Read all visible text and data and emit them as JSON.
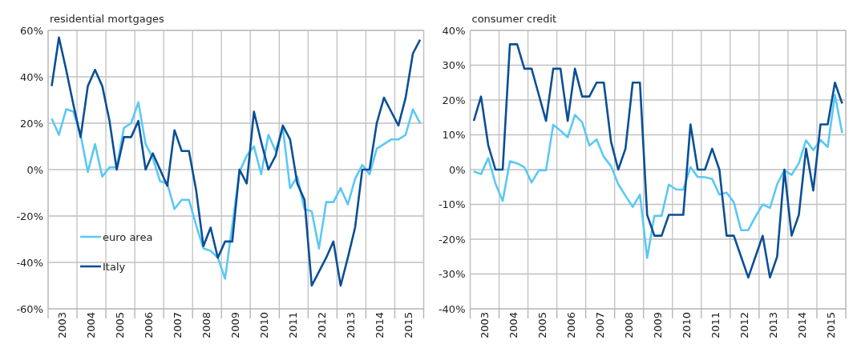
{
  "chart_data": [
    {
      "type": "line",
      "title": "residential mortgages",
      "legend": "bottom left",
      "grid": true,
      "x": [
        2003.125,
        2003.375,
        2003.625,
        2003.875,
        2004.125,
        2004.375,
        2004.625,
        2004.875,
        2005.125,
        2005.375,
        2005.625,
        2005.875,
        2006.125,
        2006.375,
        2006.625,
        2006.875,
        2007.125,
        2007.375,
        2007.625,
        2007.875,
        2008.125,
        2008.375,
        2008.625,
        2008.875,
        2009.125,
        2009.375,
        2009.625,
        2009.875,
        2010.125,
        2010.375,
        2010.625,
        2010.875,
        2011.125,
        2011.375,
        2011.625,
        2011.875,
        2012.125,
        2012.375,
        2012.625,
        2012.875,
        2013.125,
        2013.375,
        2013.625,
        2013.875,
        2014.125,
        2014.375,
        2014.625,
        2014.875,
        2015.125,
        2015.375,
        2015.625,
        2015.875
      ],
      "xlim": [
        2003,
        2016
      ],
      "xticks": [
        {
          "value": 2003,
          "label": null
        },
        {
          "value": 2004,
          "label": null
        },
        {
          "value": 2005,
          "label": null
        },
        {
          "value": 2006,
          "label": null
        },
        {
          "value": 2007,
          "label": null
        },
        {
          "value": 2008,
          "label": null
        },
        {
          "value": 2009,
          "label": null
        },
        {
          "value": 2010,
          "label": null
        },
        {
          "value": 2011,
          "label": null
        },
        {
          "value": 2012,
          "label": null
        },
        {
          "value": 2013,
          "label": null
        },
        {
          "value": 2014,
          "label": null
        },
        {
          "value": 2015,
          "label": null
        },
        {
          "value": 2016,
          "label": null
        },
        {
          "value": 2003.5,
          "label": "2003"
        },
        {
          "value": 2004.5,
          "label": "2004"
        },
        {
          "value": 2005.5,
          "label": "2005"
        },
        {
          "value": 2006.5,
          "label": "2006"
        },
        {
          "value": 2007.5,
          "label": "2007"
        },
        {
          "value": 2008.5,
          "label": "2008"
        },
        {
          "value": 2009.5,
          "label": "2009"
        },
        {
          "value": 2010.5,
          "label": "2010"
        },
        {
          "value": 2011.5,
          "label": "2011"
        },
        {
          "value": 2012.5,
          "label": "2012"
        },
        {
          "value": 2013.5,
          "label": "2013"
        },
        {
          "value": 2014.5,
          "label": "2014"
        },
        {
          "value": 2015.5,
          "label": "2015"
        }
      ],
      "ylim": [
        -60,
        60
      ],
      "yticks": [
        {
          "value": -60,
          "label": "-60%"
        },
        {
          "value": -40,
          "label": "-40%"
        },
        {
          "value": -20,
          "label": "-20%"
        },
        {
          "value": 0,
          "label": "0%"
        },
        {
          "value": 20,
          "label": "20%"
        },
        {
          "value": 40,
          "label": "40%"
        },
        {
          "value": 60,
          "label": "60%"
        }
      ],
      "series": [
        {
          "name": "euro area",
          "color": "#5bc8f5",
          "values": [
            22,
            15,
            26,
            25,
            15,
            -1,
            11,
            -3,
            1,
            1,
            18,
            20,
            29,
            11,
            5,
            -5,
            -6,
            -17,
            -13,
            -13,
            -24,
            -34,
            -35,
            -38,
            -47,
            -24,
            -1,
            6,
            10,
            -2,
            15,
            8,
            18,
            -8,
            -3,
            -17,
            -18,
            -34,
            -14,
            -14,
            -8,
            -15,
            -4,
            2,
            -2,
            9,
            11,
            13,
            13,
            15,
            26,
            20
          ]
        },
        {
          "name": "Italy",
          "color": "#0a4f96",
          "values": [
            36,
            57,
            43,
            28,
            14,
            36,
            43,
            36,
            21,
            0,
            14,
            14,
            21,
            0,
            7,
            0,
            -7,
            17,
            8,
            8,
            -9,
            -33,
            -25,
            -38,
            -31,
            -31,
            0,
            -6,
            25,
            12,
            0,
            6,
            19,
            13,
            -6,
            -13,
            -50,
            -44,
            -38,
            -31,
            -50,
            -38,
            -25,
            0,
            0,
            20,
            31,
            25,
            19,
            31,
            50,
            56
          ]
        }
      ]
    },
    {
      "type": "line",
      "title": "consumer credit",
      "grid": true,
      "x": [
        2003.125,
        2003.375,
        2003.625,
        2003.875,
        2004.125,
        2004.375,
        2004.625,
        2004.875,
        2005.125,
        2005.375,
        2005.625,
        2005.875,
        2006.125,
        2006.375,
        2006.625,
        2006.875,
        2007.125,
        2007.375,
        2007.625,
        2007.875,
        2008.125,
        2008.375,
        2008.625,
        2008.875,
        2009.125,
        2009.375,
        2009.625,
        2009.875,
        2010.125,
        2010.375,
        2010.625,
        2010.875,
        2011.125,
        2011.375,
        2011.625,
        2011.875,
        2012.125,
        2012.375,
        2012.625,
        2012.875,
        2013.125,
        2013.375,
        2013.625,
        2013.875,
        2014.125,
        2014.375,
        2014.625,
        2014.875,
        2015.125,
        2015.375,
        2015.625,
        2015.875
      ],
      "xlim": [
        2003,
        2016
      ],
      "xticks": [
        {
          "value": 2003,
          "label": null
        },
        {
          "value": 2004,
          "label": null
        },
        {
          "value": 2005,
          "label": null
        },
        {
          "value": 2006,
          "label": null
        },
        {
          "value": 2007,
          "label": null
        },
        {
          "value": 2008,
          "label": null
        },
        {
          "value": 2009,
          "label": null
        },
        {
          "value": 2010,
          "label": null
        },
        {
          "value": 2011,
          "label": null
        },
        {
          "value": 2012,
          "label": null
        },
        {
          "value": 2013,
          "label": null
        },
        {
          "value": 2014,
          "label": null
        },
        {
          "value": 2015,
          "label": null
        },
        {
          "value": 2016,
          "label": null
        },
        {
          "value": 2003.5,
          "label": "2003"
        },
        {
          "value": 2004.5,
          "label": "2004"
        },
        {
          "value": 2005.5,
          "label": "2005"
        },
        {
          "value": 2006.5,
          "label": "2006"
        },
        {
          "value": 2007.5,
          "label": "2007"
        },
        {
          "value": 2008.5,
          "label": "2008"
        },
        {
          "value": 2009.5,
          "label": "2009"
        },
        {
          "value": 2010.5,
          "label": "2010"
        },
        {
          "value": 2011.5,
          "label": "2011"
        },
        {
          "value": 2012.5,
          "label": "2012"
        },
        {
          "value": 2013.5,
          "label": "2013"
        },
        {
          "value": 2014.5,
          "label": "2014"
        },
        {
          "value": 2015.5,
          "label": "2015"
        }
      ],
      "ylim": [
        -40,
        40
      ],
      "yticks": [
        {
          "value": -40,
          "label": "-40%"
        },
        {
          "value": -30,
          "label": "-30%"
        },
        {
          "value": -20,
          "label": "-20%"
        },
        {
          "value": -10,
          "label": "-10%"
        },
        {
          "value": 0,
          "label": "0%"
        },
        {
          "value": 10,
          "label": "10%"
        },
        {
          "value": 20,
          "label": "20%"
        },
        {
          "value": 30,
          "label": "30%"
        },
        {
          "value": 40,
          "label": "40%"
        }
      ],
      "series": [
        {
          "color": "#5bc8f5",
          "values": [
            -0.5,
            -1.3,
            3.3,
            -4,
            -9,
            2.4,
            1.8,
            0.7,
            -3.7,
            -0.2,
            -0.2,
            12.9,
            11.2,
            9.3,
            15.7,
            13.6,
            6.9,
            8.7,
            3.7,
            1,
            -4.2,
            -7.5,
            -10.7,
            -7.2,
            -25.4,
            -13.3,
            -13.3,
            -4.3,
            -5.7,
            -5.8,
            0.7,
            -2.1,
            -2.2,
            -2.7,
            -7.2,
            -6.6,
            -9.4,
            -17.4,
            -17.4,
            -13.5,
            -10,
            -11,
            -4.2,
            -0.2,
            -1.5,
            1.8,
            8.4,
            5.6,
            8.5,
            6.5,
            21.5,
            10.5
          ]
        },
        {
          "color": "#0a4f96",
          "values": [
            14,
            21,
            7,
            0,
            0,
            36,
            36,
            29,
            29,
            21.5,
            14,
            29,
            29,
            14,
            29,
            21,
            21,
            25,
            25,
            8,
            0,
            6,
            25,
            25,
            -13,
            -19,
            -19,
            -13,
            -13,
            -13,
            13,
            0,
            0,
            6,
            0,
            -19,
            -19,
            -25,
            -31,
            -25,
            -19,
            -31,
            -25,
            0,
            -19,
            -13,
            6,
            -6,
            13,
            13,
            25,
            19
          ]
        }
      ]
    }
  ]
}
